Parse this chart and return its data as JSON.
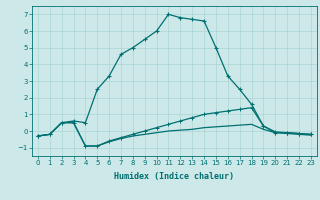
{
  "xlabel": "Humidex (Indice chaleur)",
  "bg_color": "#cce8e8",
  "grid_color": "#aad4d4",
  "line_color": "#007070",
  "xlim": [
    -0.5,
    23.5
  ],
  "ylim": [
    -1.5,
    7.5
  ],
  "xticks": [
    0,
    1,
    2,
    3,
    4,
    5,
    6,
    7,
    8,
    9,
    10,
    11,
    12,
    13,
    14,
    15,
    16,
    17,
    18,
    19,
    20,
    21,
    22,
    23
  ],
  "yticks": [
    -1,
    0,
    1,
    2,
    3,
    4,
    5,
    6,
    7
  ],
  "curve1_x": [
    0,
    1,
    2,
    3,
    4,
    5,
    6,
    7,
    8,
    9,
    10,
    11,
    12,
    13,
    14,
    15,
    16,
    17,
    18,
    19,
    20,
    21,
    22,
    23
  ],
  "curve1_y": [
    -0.3,
    -0.2,
    0.5,
    0.6,
    0.5,
    2.5,
    3.3,
    4.6,
    5.0,
    5.5,
    6.0,
    7.0,
    6.8,
    6.7,
    6.6,
    5.0,
    3.3,
    2.5,
    1.6,
    0.3,
    -0.1,
    -0.1,
    -0.15,
    -0.2
  ],
  "curve2_x": [
    0,
    1,
    2,
    3,
    4,
    5,
    6,
    7,
    8,
    9,
    10,
    11,
    12,
    13,
    14,
    15,
    16,
    17,
    18,
    19,
    20,
    21,
    22,
    23
  ],
  "curve2_y": [
    -0.3,
    -0.2,
    0.5,
    0.5,
    -0.9,
    -0.9,
    -0.6,
    -0.4,
    -0.2,
    0.0,
    0.2,
    0.4,
    0.6,
    0.8,
    1.0,
    1.1,
    1.2,
    1.3,
    1.4,
    0.3,
    -0.05,
    -0.1,
    -0.15,
    -0.2
  ],
  "curve3_x": [
    0,
    1,
    2,
    3,
    4,
    5,
    6,
    7,
    8,
    9,
    10,
    11,
    12,
    13,
    14,
    15,
    16,
    17,
    18,
    19,
    20,
    21,
    22,
    23
  ],
  "curve3_y": [
    -0.3,
    -0.2,
    0.5,
    0.5,
    -0.9,
    -0.9,
    -0.65,
    -0.45,
    -0.3,
    -0.2,
    -0.1,
    0.0,
    0.05,
    0.1,
    0.2,
    0.25,
    0.3,
    0.35,
    0.4,
    0.1,
    -0.1,
    -0.15,
    -0.2,
    -0.25
  ]
}
